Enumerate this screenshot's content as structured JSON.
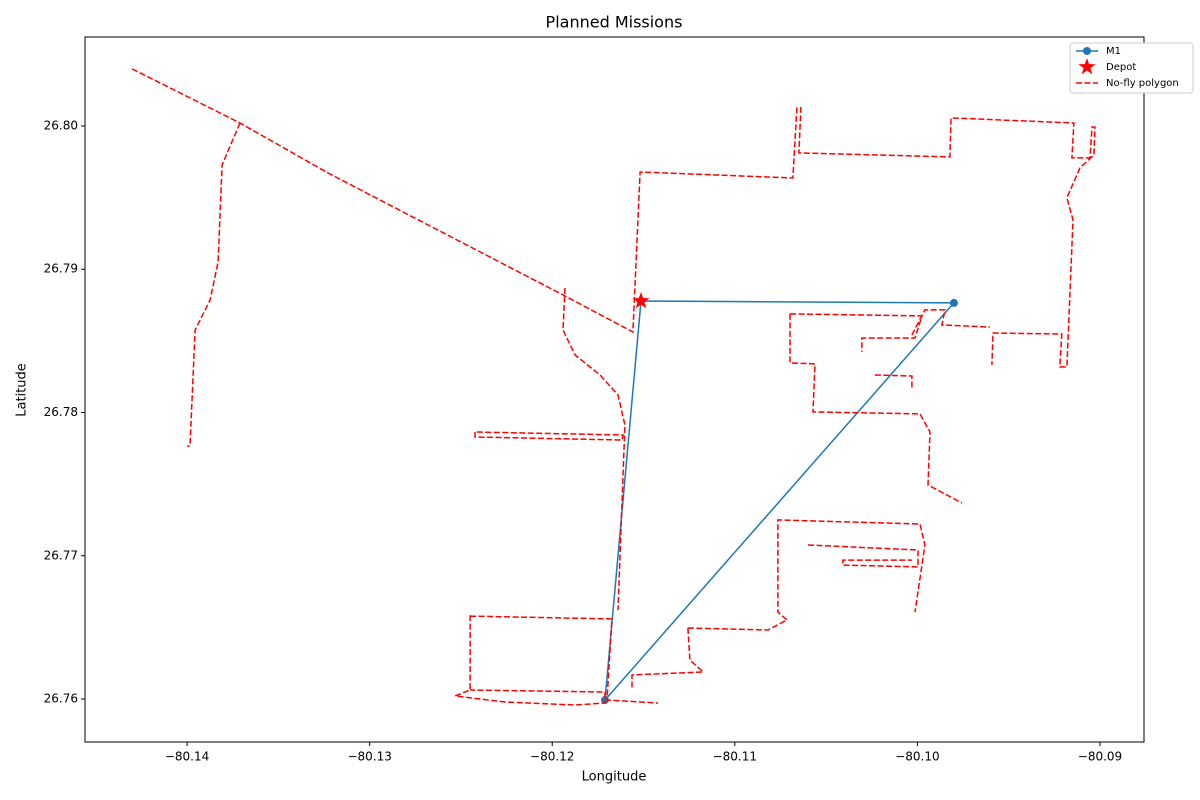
{
  "chart_data": {
    "type": "line",
    "title": "Planned Missions",
    "x_label": "Longitude",
    "y_label": "Latitude",
    "xlim": [
      -80.14559,
      -80.08759
    ],
    "ylim": [
      26.757,
      26.80621
    ],
    "xticks": [
      {
        "value": -80.14,
        "label": "−80.14"
      },
      {
        "value": -80.13,
        "label": "−80.13"
      },
      {
        "value": -80.12,
        "label": "−80.12"
      },
      {
        "value": -80.11,
        "label": "−80.11"
      },
      {
        "value": -80.1,
        "label": "−80.10"
      },
      {
        "value": -80.09,
        "label": "−80.09"
      }
    ],
    "yticks": [
      26.76,
      26.77,
      26.78,
      26.79,
      {
        "value": 26.8,
        "label": "26.80"
      }
    ],
    "legend_position": "upper right",
    "series": [
      {
        "name": "M1",
        "color": "#1f77b4",
        "marker": "circle",
        "linestyle": "solid",
        "x": [
          -80.11514,
          -80.098,
          -80.11711,
          -80.11514
        ],
        "values": [
          26.78778,
          26.78765,
          26.75993,
          26.78778
        ]
      },
      {
        "name": "Depot",
        "color": "#ff0000",
        "marker": "star",
        "linestyle": "none",
        "x": [
          -80.11514
        ],
        "values": [
          26.78778
        ]
      },
      {
        "name": "No-fly polygon",
        "color": "#ff0000",
        "marker": "none",
        "linestyle": "dashed",
        "x": [
          -80.14301,
          -80.1371,
          -80.13228,
          -80.1193,
          -80.11558,
          -80.11519,
          -80.10682,
          -80.1066,
          -80.10638,
          -80.10649,
          -80.09822,
          -80.09816,
          -80.09143,
          -80.09154,
          -80.09055,
          -80.09044,
          -80.09028,
          -80.09033,
          -80.0911,
          -80.09181,
          -80.09148,
          -80.09181,
          -80.0922,
          -80.09209,
          -80.09586,
          -80.09592,
          null,
          -80.1371,
          -80.13808,
          -80.1383,
          -80.13874,
          -80.13956,
          -80.13984,
          -80.14,
          null,
          -80.1193,
          -80.11941,
          -80.11875,
          -80.11738,
          -80.1164,
          -80.11602,
          -80.1164,
          null,
          -80.12423,
          -80.12423,
          -80.11618,
          -80.11612,
          -80.12423,
          null,
          -80.1245,
          -80.1245,
          -80.12532,
          -80.12259,
          -80.11875,
          -80.11711,
          -80.11711,
          -80.1245,
          null,
          -80.1245,
          -80.11673,
          -80.117,
          -80.11421,
          null,
          -80.11257,
          -80.11246,
          -80.11174,
          -80.11563,
          -80.11563,
          null,
          -80.11257,
          -80.10818,
          -80.10714,
          -80.10764,
          -80.10764,
          -80.09986,
          -80.09959,
          -80.10013,
          null,
          -80.10599,
          -80.09997,
          -80.09997,
          -80.10408,
          -80.10408,
          -80.1003,
          null,
          -80.10698,
          -80.09975,
          -80.10013,
          -80.10304,
          -80.10304,
          null,
          -80.10698,
          -80.10698,
          -80.10561,
          -80.10572,
          -80.09986,
          -80.09931,
          -80.09942,
          -80.09756,
          null,
          -80.10233,
          -80.1003,
          -80.1003,
          null,
          -80.1003,
          -80.09959,
          -80.09849,
          -80.09866,
          -80.09603
        ],
        "values": [
          26.80398,
          26.80021,
          26.79672,
          26.78813,
          26.78562,
          26.79679,
          26.79637,
          26.80126,
          26.80126,
          26.79812,
          26.79784,
          26.80056,
          26.80021,
          26.79777,
          26.79777,
          26.79993,
          26.79993,
          26.79798,
          26.79707,
          26.79498,
          26.79344,
          26.78318,
          26.78318,
          26.78548,
          26.78555,
          26.78332,
          null,
          26.80021,
          26.79728,
          26.79051,
          26.78785,
          26.78576,
          26.77766,
          26.77766,
          null,
          26.78869,
          26.78576,
          26.78401,
          26.78262,
          26.78122,
          26.77913,
          26.76621,
          null,
          26.77864,
          26.77829,
          26.77808,
          26.77843,
          26.77864,
          null,
          26.76586,
          26.76063,
          26.76021,
          26.75979,
          26.75958,
          26.75972,
          26.76049,
          26.76063,
          null,
          26.76579,
          26.76559,
          26.75993,
          26.75972,
          null,
          26.76496,
          26.76272,
          26.76189,
          26.76168,
          26.76063,
          null,
          26.76496,
          26.76482,
          26.76552,
          26.76607,
          26.7725,
          26.77222,
          26.77075,
          26.76607,
          null,
          26.77075,
          26.7704,
          26.76922,
          26.76935,
          26.7697,
          26.7697,
          null,
          26.78688,
          26.78674,
          26.7852,
          26.7852,
          26.78422,
          null,
          26.78688,
          26.78346,
          26.78339,
          26.78004,
          26.7799,
          26.77864,
          26.77494,
          26.77368,
          null,
          26.78262,
          26.78255,
          26.78157,
          null,
          26.78541,
          26.78716,
          26.78716,
          26.78611,
          26.78597
        ]
      }
    ]
  }
}
